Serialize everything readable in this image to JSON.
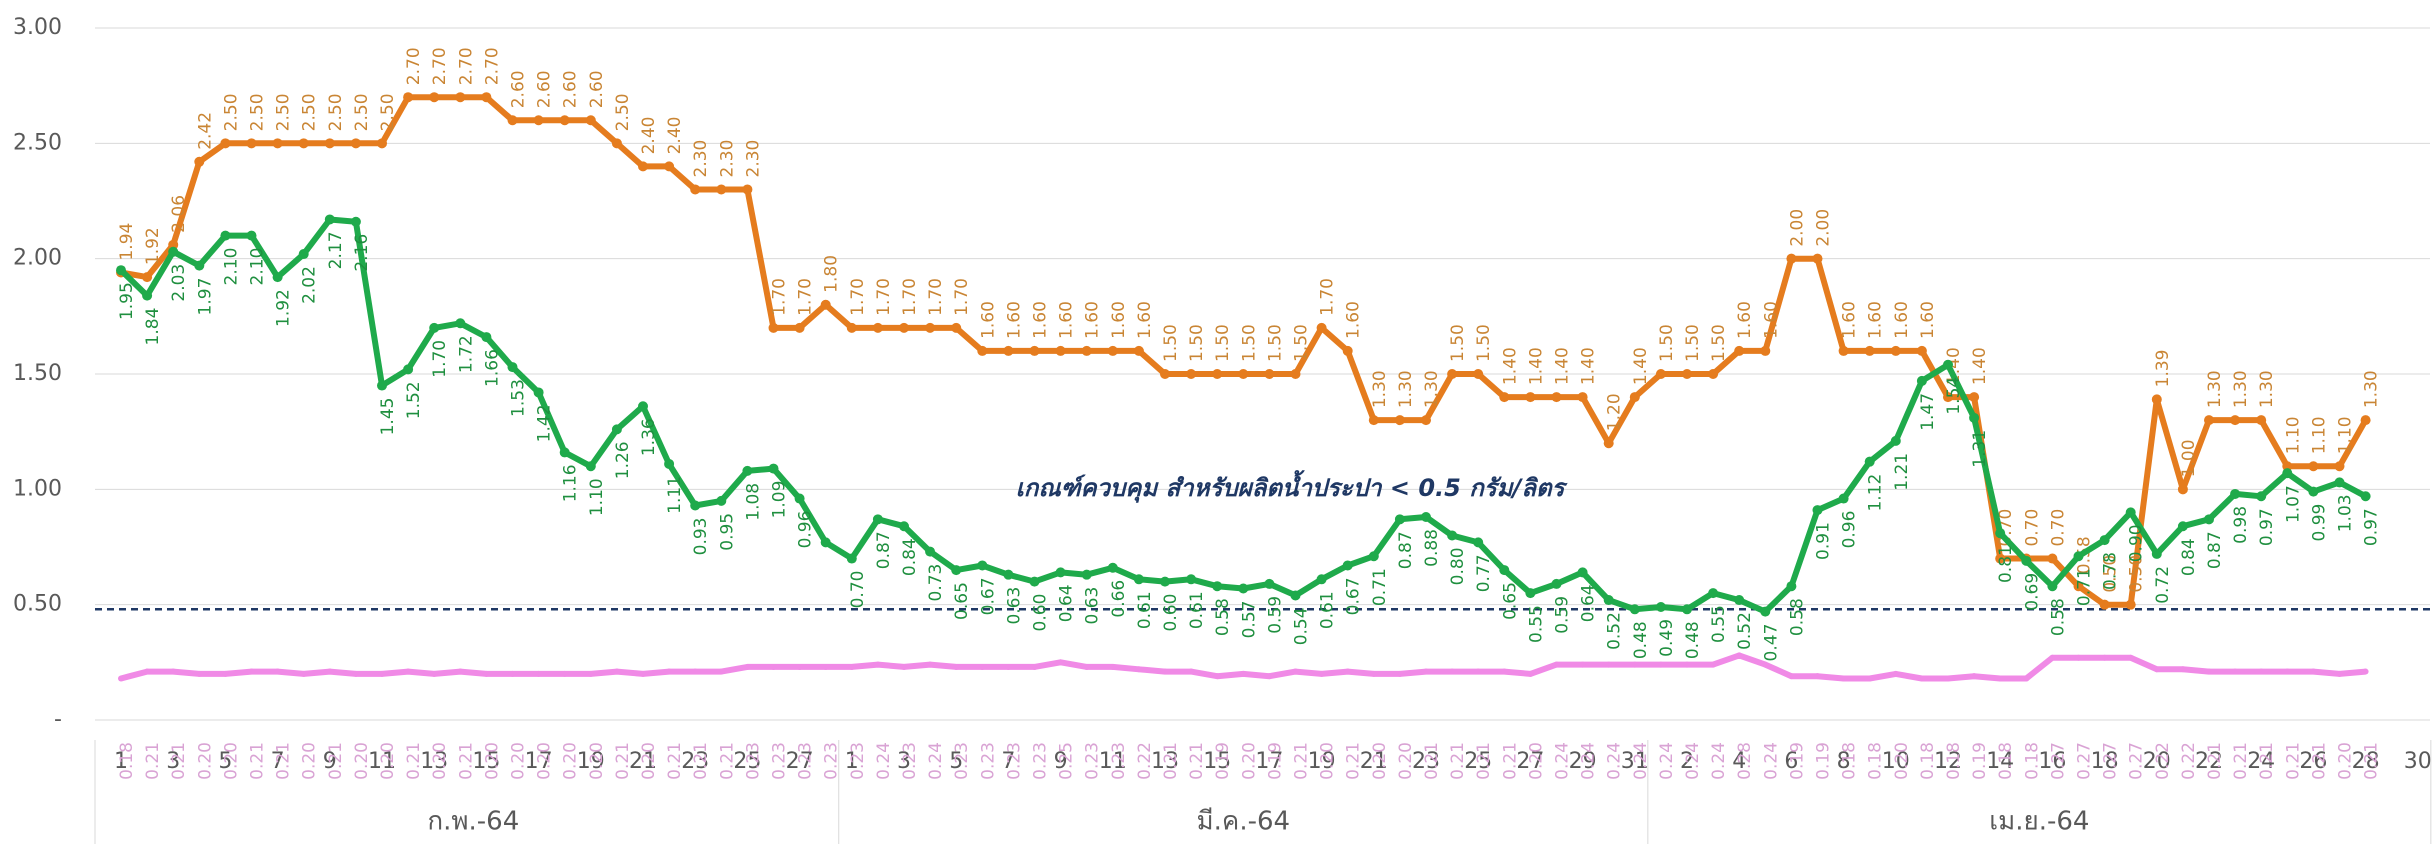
{
  "chart_data": {
    "type": "line",
    "category_groups": [
      {
        "name": "ก.พ.-64",
        "categories": [
          "1",
          null,
          "3",
          null,
          "5",
          null,
          "7",
          null,
          "9",
          null,
          "11",
          null,
          "13",
          null,
          "15",
          null,
          "17",
          null,
          "19",
          null,
          "21",
          null,
          "23",
          null,
          "25",
          null,
          "27",
          null
        ]
      },
      {
        "name": "มี.ค.-64",
        "categories": [
          "1",
          null,
          "3",
          null,
          "5",
          null,
          "7",
          null,
          "9",
          null,
          "11",
          null,
          "13",
          null,
          "15",
          null,
          "17",
          null,
          "19",
          null,
          "21",
          null,
          "23",
          null,
          "25",
          null,
          "27",
          null,
          "29",
          null,
          "31"
        ]
      },
      {
        "name": "เม.ย.-64",
        "categories": [
          null,
          "2",
          null,
          "4",
          null,
          "6",
          null,
          "8",
          null,
          "10",
          null,
          "12",
          null,
          "14",
          null,
          "16",
          null,
          "18",
          null,
          "20",
          null,
          "22",
          null,
          "24",
          null,
          "26",
          null,
          "28",
          null,
          "30"
        ]
      }
    ],
    "series": [
      {
        "color": "#e57c1e",
        "label_color": "#c98534",
        "values": [
          1.94,
          1.92,
          2.06,
          2.42,
          2.5,
          2.5,
          2.5,
          2.5,
          2.5,
          2.5,
          2.5,
          2.7,
          2.7,
          2.7,
          2.7,
          2.6,
          2.6,
          2.6,
          2.6,
          2.5,
          2.4,
          2.4,
          2.3,
          2.3,
          2.3,
          1.7,
          1.7,
          1.8,
          1.7,
          1.7,
          1.7,
          1.7,
          1.7,
          1.6,
          1.6,
          1.6,
          1.6,
          1.6,
          1.6,
          1.6,
          1.5,
          1.5,
          1.5,
          1.5,
          1.5,
          1.5,
          1.7,
          1.6,
          1.3,
          1.3,
          1.3,
          1.5,
          1.5,
          1.4,
          1.4,
          1.4,
          1.4,
          1.2,
          1.4,
          1.5,
          1.5,
          1.5,
          1.6,
          1.6,
          2.0,
          2.0,
          1.6,
          1.6,
          1.6,
          1.6,
          1.4,
          1.4,
          0.7,
          0.7,
          0.7,
          0.58,
          0.5,
          0.5,
          1.39,
          1.0,
          1.3,
          1.3,
          1.3,
          1.1,
          1.1,
          1.1,
          1.3,
          null,
          null
        ],
        "value_labels": [
          "1.94",
          "1.92",
          "2.06",
          "2.42",
          "2.50",
          "2.50",
          "2.50",
          "2.50",
          "2.50",
          "2.50",
          "2.50",
          "2.70",
          "2.70",
          "2.70",
          "2.70",
          "2.60",
          "2.60",
          "2.60",
          "2.60",
          "2.50",
          "2.40",
          "2.40",
          "2.30",
          "2.30",
          "2.30",
          "1.70",
          "1.70",
          "1.80",
          "1.70",
          "1.70",
          "1.70",
          "1.70",
          "1.70",
          "1.60",
          "1.60",
          "1.60",
          "1.60",
          "1.60",
          "1.60",
          "1.60",
          "1.50",
          "1.50",
          "1.50",
          "1.50",
          "1.50",
          "1.50",
          "1.70",
          "1.60",
          "1.30",
          "1.30",
          "1.30",
          "1.50",
          "1.50",
          "1.40",
          "1.40",
          "1.40",
          "1.40",
          "1.20",
          "1.40",
          "1.50",
          "1.50",
          "1.50",
          "1.60",
          "1.60",
          "2.00",
          "2.00",
          "1.60",
          "1.60",
          "1.60",
          "1.60",
          "1.40",
          "1.40",
          "0.70",
          "0.70",
          "0.70",
          "0.58",
          "0.50",
          "0.50",
          "1.39",
          "1.00",
          "1.30",
          "1.30",
          "1.30",
          "1.10",
          "1.10",
          "1.10",
          "1.30",
          null,
          null
        ]
      },
      {
        "color": "#1faa4b",
        "label_color": "#1f8f3f",
        "values": [
          1.95,
          1.84,
          2.03,
          1.97,
          2.1,
          2.1,
          1.92,
          2.02,
          2.17,
          2.16,
          1.45,
          1.52,
          1.7,
          1.72,
          1.66,
          1.53,
          1.42,
          1.16,
          1.1,
          1.26,
          1.36,
          1.11,
          0.93,
          0.95,
          1.08,
          1.09,
          0.96,
          0.77,
          0.7,
          0.87,
          0.84,
          0.73,
          0.65,
          0.67,
          0.63,
          0.6,
          0.64,
          0.63,
          0.66,
          0.61,
          0.6,
          0.61,
          0.58,
          0.57,
          0.59,
          0.54,
          0.61,
          0.67,
          0.71,
          0.87,
          0.88,
          0.8,
          0.77,
          0.65,
          0.55,
          0.59,
          0.64,
          0.52,
          0.48,
          0.49,
          0.48,
          0.55,
          0.52,
          0.47,
          0.58,
          0.91,
          0.96,
          1.12,
          1.21,
          1.47,
          1.54,
          1.31,
          0.81,
          0.69,
          0.58,
          0.71,
          0.78,
          0.9,
          0.72,
          0.84,
          0.87,
          0.98,
          0.97,
          1.07,
          0.99,
          1.03,
          0.97,
          null,
          null
        ],
        "value_labels": [
          "1.95",
          "1.84",
          "2.03",
          "1.97",
          "2.10",
          "2.10",
          "1.92",
          "2.02",
          "2.17",
          "2.16",
          "1.45",
          "1.52",
          "1.70",
          "1.72",
          "1.66",
          "1.53",
          "1.42",
          "1.16",
          "1.10",
          "1.26",
          "1.36",
          "1.11",
          "0.93",
          "0.95",
          "1.08",
          "1.09",
          "0.96",
          null,
          "0.70",
          "0.87",
          "0.84",
          "0.73",
          "0.65",
          "0.67",
          "0.63",
          "0.60",
          "0.64",
          "0.63",
          "0.66",
          "0.61",
          "0.60",
          "0.61",
          "0.58",
          "0.57",
          "0.59",
          "0.54",
          "0.61",
          "0.67",
          "0.71",
          "0.87",
          "0.88",
          "0.80",
          "0.77",
          "0.65",
          "0.55",
          "0.59",
          "0.64",
          "0.52",
          "0.48",
          "0.49",
          "0.48",
          "0.55",
          "0.52",
          "0.47",
          "0.58",
          "0.91",
          "0.96",
          "1.12",
          "1.21",
          "1.47",
          "1.54",
          "1.31",
          "0.81",
          "0.69",
          "0.58",
          "0.71",
          "0.78",
          "0.90",
          "0.72",
          "0.84",
          "0.87",
          "0.98",
          "0.97",
          "1.07",
          "0.99",
          "1.03",
          "0.97",
          null,
          null
        ]
      },
      {
        "color": "#f08ae6",
        "label_color": "#d9a3d4",
        "values": [
          0.18,
          0.21,
          0.21,
          0.2,
          0.2,
          0.21,
          0.21,
          0.2,
          0.21,
          0.2,
          0.2,
          0.21,
          0.2,
          0.21,
          0.2,
          0.2,
          0.2,
          0.2,
          0.2,
          0.21,
          0.2,
          0.21,
          0.21,
          0.21,
          0.23,
          0.23,
          0.23,
          0.23,
          0.23,
          0.24,
          0.23,
          0.24,
          0.23,
          0.23,
          0.23,
          0.23,
          0.25,
          0.23,
          0.23,
          0.22,
          0.21,
          0.21,
          0.19,
          0.2,
          0.19,
          0.21,
          0.2,
          0.21,
          0.2,
          0.2,
          0.21,
          0.21,
          0.21,
          0.21,
          0.2,
          0.24,
          0.24,
          0.24,
          0.24,
          0.24,
          0.24,
          0.24,
          0.28,
          0.24,
          0.19,
          0.19,
          0.18,
          0.18,
          0.2,
          0.18,
          0.18,
          0.19,
          0.18,
          0.18,
          0.27,
          0.27,
          0.27,
          0.27,
          0.22,
          0.22,
          0.21,
          0.21,
          0.21,
          0.21,
          0.21,
          0.2,
          0.21,
          null,
          null
        ],
        "value_labels": [
          "0.18",
          "0.21",
          "0.21",
          "0.20",
          "0.20",
          "0.21",
          "0.21",
          "0.20",
          "0.21",
          "0.20",
          "0.20",
          "0.21",
          "0.20",
          "0.21",
          "0.20",
          "0.20",
          "0.20",
          "0.20",
          "0.20",
          "0.21",
          "0.20",
          "0.21",
          "0.21",
          "0.21",
          "0.23",
          "0.23",
          "0.23",
          "0.23",
          "0.23",
          "0.24",
          "0.23",
          "0.24",
          "0.23",
          "0.23",
          "0.23",
          "0.23",
          "0.25",
          "0.23",
          "0.23",
          "0.22",
          "0.21",
          "0.21",
          "0.19",
          "0.20",
          "0.19",
          "0.21",
          "0.20",
          "0.21",
          "0.20",
          "0.20",
          "0.21",
          "0.21",
          "0.21",
          "0.21",
          "0.20",
          "0.24",
          "0.24",
          "0.24",
          "0.24",
          "0.24",
          "0.24",
          "0.24",
          "0.28",
          "0.24",
          "0.19",
          "0.19",
          "0.18",
          "0.18",
          "0.20",
          "0.18",
          "0.18",
          "0.19",
          "0.18",
          "0.18",
          "0.27",
          "0.27",
          "0.27",
          "0.27",
          "0.22",
          "0.22",
          "0.21",
          "0.21",
          "0.21",
          "0.21",
          "0.21",
          "0.20",
          "0.21",
          null,
          null
        ]
      }
    ],
    "reference_line": {
      "value": 0.48,
      "color": "#1f3864",
      "label": "เกณฑ์ควบคุม สำหรับผลิตน้ำประปา < 0.5 กรัม/ลิตร"
    },
    "ylim": [
      0,
      3
    ],
    "yticks": [
      {
        "value": 0,
        "label": "-"
      },
      {
        "value": 0.5,
        "label": "0.50"
      },
      {
        "value": 1,
        "label": "1.00"
      },
      {
        "value": 1.5,
        "label": "1.50"
      },
      {
        "value": 2,
        "label": "2.00"
      },
      {
        "value": 2.5,
        "label": "2.50"
      },
      {
        "value": 3,
        "label": "3.00"
      }
    ],
    "grid": true
  }
}
